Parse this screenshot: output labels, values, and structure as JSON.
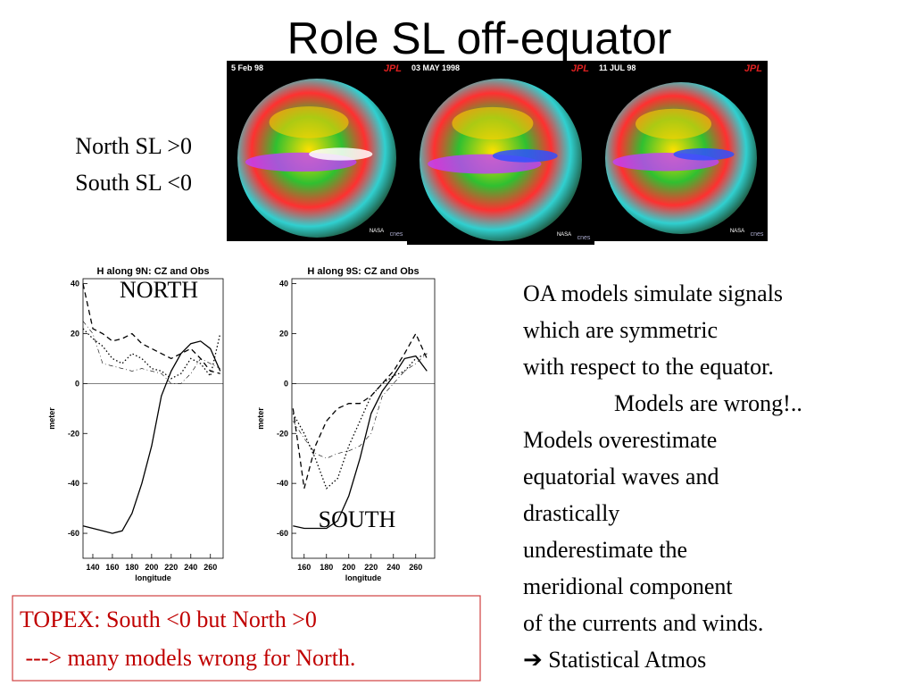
{
  "title": "Role SL off-equator",
  "sl_notes": [
    "North  SL >0",
    "South SL <0"
  ],
  "maps": [
    {
      "date": "5 Feb 98",
      "logo": "JPL",
      "agencies": [
        "NASA",
        "cnes"
      ]
    },
    {
      "date": "03 MAY 1998",
      "logo": "JPL",
      "agencies": [
        "NASA",
        "cnes"
      ]
    },
    {
      "date": "11 JUL 98",
      "logo": "JPL",
      "agencies": [
        "NASA",
        "cnes"
      ]
    }
  ],
  "chart_data": [
    {
      "type": "line",
      "title": "H along 9N: CZ and Obs",
      "label": "NORTH",
      "x_label": "longitude",
      "y_label": "meter",
      "x": [
        130,
        140,
        150,
        160,
        170,
        180,
        190,
        200,
        210,
        220,
        230,
        240,
        250,
        260,
        270
      ],
      "xlim": [
        130,
        273
      ],
      "ylim": [
        -70,
        42
      ],
      "xticks": [
        140,
        160,
        180,
        200,
        220,
        240,
        260
      ],
      "yticks": [
        40,
        20,
        0,
        -20,
        -40,
        -60
      ],
      "zero_line": true,
      "series": [
        {
          "style": "solid",
          "color": "#000000",
          "values": [
            -57,
            -58,
            -59,
            -60,
            -59,
            -52,
            -40,
            -25,
            -5,
            5,
            12,
            16,
            17,
            14,
            5
          ]
        },
        {
          "style": "dashed",
          "color": "#000000",
          "values": [
            40,
            22,
            20,
            17,
            18,
            20,
            16,
            14,
            12,
            10,
            12,
            14,
            10,
            5,
            4
          ]
        },
        {
          "style": "dotted",
          "color": "#000000",
          "values": [
            22,
            18,
            15,
            10,
            8,
            12,
            10,
            6,
            5,
            2,
            4,
            10,
            8,
            3,
            20
          ]
        },
        {
          "style": "dashdot",
          "color": "#000000",
          "values": [
            25,
            20,
            8,
            7,
            6,
            5,
            6,
            5,
            4,
            0,
            0,
            4,
            10,
            8,
            6
          ]
        }
      ]
    },
    {
      "type": "line",
      "title": "H along 9S:  CZ and Obs",
      "label": "SOUTH",
      "x_label": "longitude",
      "y_label": "meter",
      "x": [
        150,
        160,
        170,
        180,
        190,
        200,
        210,
        220,
        230,
        240,
        250,
        260,
        270
      ],
      "xlim": [
        149,
        277
      ],
      "ylim": [
        -70,
        42
      ],
      "xticks": [
        160,
        180,
        200,
        220,
        240,
        260
      ],
      "yticks": [
        40,
        20,
        0,
        -20,
        -40,
        -60
      ],
      "zero_line": true,
      "series": [
        {
          "style": "solid",
          "color": "#000000",
          "values": [
            -57,
            -58,
            -58,
            -58,
            -55,
            -45,
            -30,
            -12,
            -3,
            3,
            10,
            11,
            5
          ]
        },
        {
          "style": "dashed",
          "color": "#000000",
          "values": [
            -10,
            -42,
            -25,
            -15,
            -10,
            -8,
            -8,
            -5,
            0,
            5,
            12,
            20,
            10
          ]
        },
        {
          "style": "dotted",
          "color": "#000000",
          "values": [
            -12,
            -20,
            -30,
            -42,
            -38,
            -25,
            -15,
            -5,
            0,
            3,
            5,
            10,
            12
          ]
        },
        {
          "style": "dashdot",
          "color": "#000000",
          "values": [
            -15,
            -22,
            -28,
            -30,
            -28,
            -27,
            -25,
            -20,
            -5,
            0,
            5,
            8,
            12
          ]
        }
      ]
    }
  ],
  "body_text": [
    "OA models simulate signals",
    "which are symmetric",
    "with respect to the equator.",
    "Models are wrong!..",
    "Models overestimate",
    "equatorial waves and",
    "drastically",
    "underestimate the",
    "meridional component",
    "of the currents and winds.",
    "➔ Statistical Atmos"
  ],
  "note": [
    "TOPEX: South <0  but North >0",
    " ---> many models wrong for North."
  ]
}
